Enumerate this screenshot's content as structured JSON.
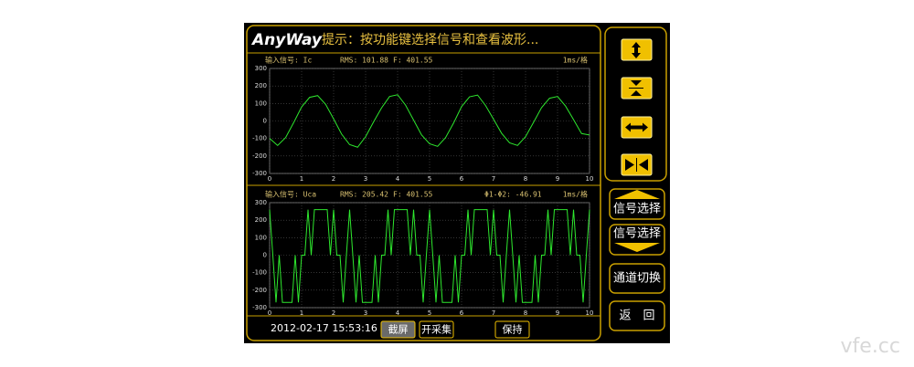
{
  "header": {
    "logo": "AnyWay",
    "prompt": "提示：按功能键选择信号和查看波形..."
  },
  "chart_data": [
    {
      "type": "line",
      "signal": "输入信号: Ic",
      "rms": "RMS: 101.88",
      "freq": "F: 401.55",
      "scale": "1ms/格",
      "color": "#2ee82e",
      "grid": true,
      "x": [
        0,
        0.25,
        0.5,
        0.75,
        1,
        1.25,
        1.5,
        1.75,
        2,
        2.25,
        2.5,
        2.75,
        3,
        3.25,
        3.5,
        3.75,
        4,
        4.25,
        4.5,
        4.75,
        5,
        5.25,
        5.5,
        5.75,
        6,
        6.25,
        6.5,
        6.75,
        7,
        7.25,
        7.5,
        7.75,
        8,
        8.25,
        8.5,
        8.75,
        9,
        9.25,
        9.5,
        9.75,
        10
      ],
      "values": [
        -100,
        -140,
        -95,
        -10,
        80,
        135,
        145,
        95,
        12,
        -75,
        -135,
        -150,
        -90,
        -5,
        75,
        140,
        150,
        90,
        5,
        -80,
        -130,
        -145,
        -95,
        -12,
        82,
        138,
        148,
        88,
        10,
        -70,
        -125,
        -140,
        -90,
        -8,
        76,
        130,
        140,
        85,
        8,
        -72,
        -80
      ],
      "xlim": [
        0,
        10
      ],
      "ylim": [
        -300,
        300
      ],
      "xticks": [
        0,
        1,
        2,
        3,
        4,
        5,
        6,
        7,
        8,
        9,
        10
      ],
      "yticks": [
        -300,
        -200,
        -100,
        0,
        100,
        200,
        300
      ]
    },
    {
      "type": "line",
      "signal": "输入信号: Uca",
      "rms": "RMS: 205.42",
      "freq": "F: 401.55",
      "phase": "Φ1-Φ2: -46.91",
      "scale": "1ms/格",
      "color": "#2ee82e",
      "grid": true,
      "x": [
        0,
        0.1,
        0.2,
        0.3,
        0.4,
        0.5,
        0.6,
        0.7,
        0.8,
        0.9,
        1,
        1.1,
        1.2,
        1.3,
        1.4,
        1.5,
        1.6,
        1.7,
        1.8,
        1.9,
        2,
        2.1,
        2.2,
        2.3,
        2.4,
        2.5,
        2.6,
        2.7,
        2.8,
        2.9,
        3,
        3.1,
        3.2,
        3.3,
        3.4,
        3.5,
        3.6,
        3.7,
        3.8,
        3.9,
        4,
        4.1,
        4.2,
        4.3,
        4.4,
        4.5,
        4.6,
        4.7,
        4.8,
        4.9,
        5,
        5.1,
        5.2,
        5.3,
        5.4,
        5.5,
        5.6,
        5.7,
        5.8,
        5.9,
        6,
        6.1,
        6.2,
        6.3,
        6.4,
        6.5,
        6.6,
        6.7,
        6.8,
        6.9,
        7,
        7.1,
        7.2,
        7.3,
        7.4,
        7.5,
        7.6,
        7.7,
        7.8,
        7.9,
        8,
        8.1,
        8.2,
        8.3,
        8.4,
        8.5,
        8.6,
        8.7,
        8.8,
        8.9,
        9,
        9.1,
        9.2,
        9.3,
        9.4,
        9.5,
        9.6,
        9.7,
        9.8,
        9.9,
        10
      ],
      "values": [
        260,
        0,
        -270,
        0,
        -270,
        -270,
        -270,
        -270,
        0,
        -270,
        0,
        0,
        260,
        0,
        260,
        260,
        260,
        260,
        260,
        0,
        260,
        0,
        0,
        -270,
        0,
        260,
        0,
        -270,
        0,
        -270,
        -270,
        -270,
        -270,
        0,
        -270,
        0,
        0,
        260,
        0,
        260,
        260,
        260,
        260,
        260,
        0,
        260,
        0,
        0,
        -270,
        0,
        260,
        0,
        -270,
        0,
        -270,
        -270,
        -270,
        -270,
        0,
        -270,
        0,
        0,
        260,
        0,
        260,
        260,
        260,
        260,
        260,
        0,
        260,
        0,
        0,
        -270,
        0,
        260,
        0,
        -270,
        0,
        -270,
        -270,
        -270,
        -270,
        0,
        -270,
        0,
        0,
        260,
        0,
        260,
        260,
        260,
        260,
        260,
        0,
        260,
        0,
        0,
        -270,
        0,
        260
      ],
      "xlim": [
        0,
        10
      ],
      "ylim": [
        -300,
        300
      ],
      "xticks": [
        0,
        1,
        2,
        3,
        4,
        5,
        6,
        7,
        8,
        9,
        10
      ],
      "yticks": [
        -300,
        -200,
        -100,
        0,
        100,
        200,
        300
      ]
    }
  ],
  "side_buttons": [
    "信号选择",
    "信号选择",
    "通道切换",
    "返　回"
  ],
  "footer": {
    "datetime": "2012-02-17 15:53:16",
    "buttons": [
      "截屏",
      "开采集",
      "保持"
    ]
  },
  "watermark": "vfe.cc"
}
